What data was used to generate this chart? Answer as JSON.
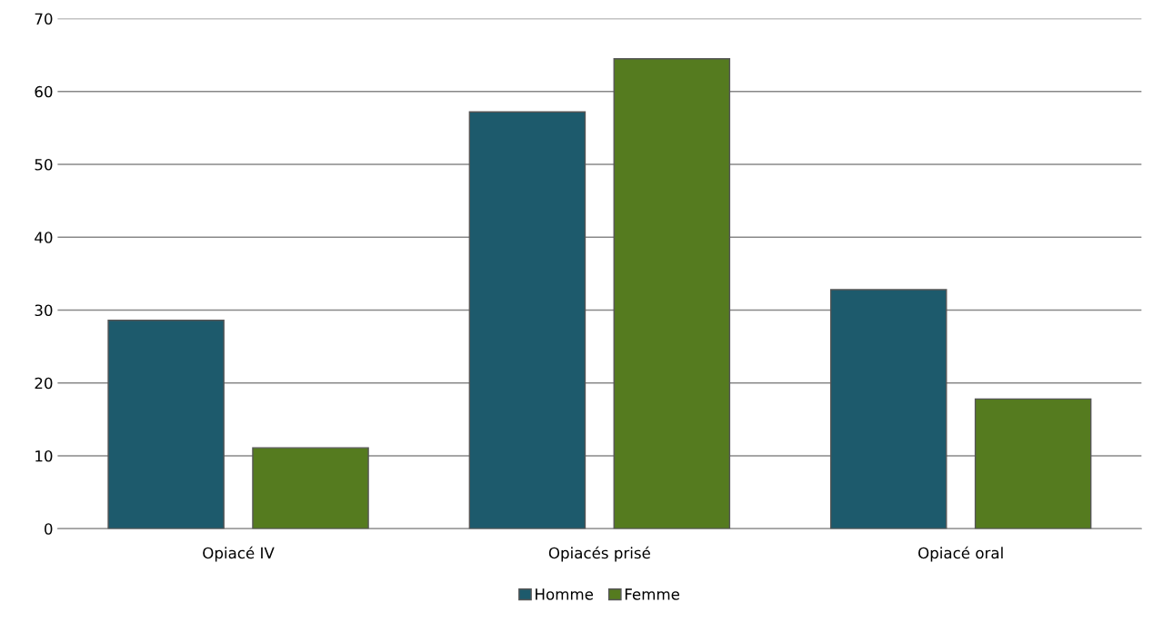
{
  "chart_data": {
    "type": "bar",
    "categories": [
      "Opiacé IV",
      "Opiacés prisé",
      "Opiacé oral"
    ],
    "series": [
      {
        "name": "Homme",
        "color": "#1d5a6c",
        "values": [
          28.6,
          57.2,
          32.8
        ]
      },
      {
        "name": "Femme",
        "color": "#557b1f",
        "values": [
          11.1,
          64.5,
          17.8
        ]
      }
    ],
    "ylim": [
      0,
      70
    ],
    "yticks": [
      0,
      10,
      20,
      30,
      40,
      50,
      60,
      70
    ],
    "grid": "y",
    "legend": "bottom"
  }
}
